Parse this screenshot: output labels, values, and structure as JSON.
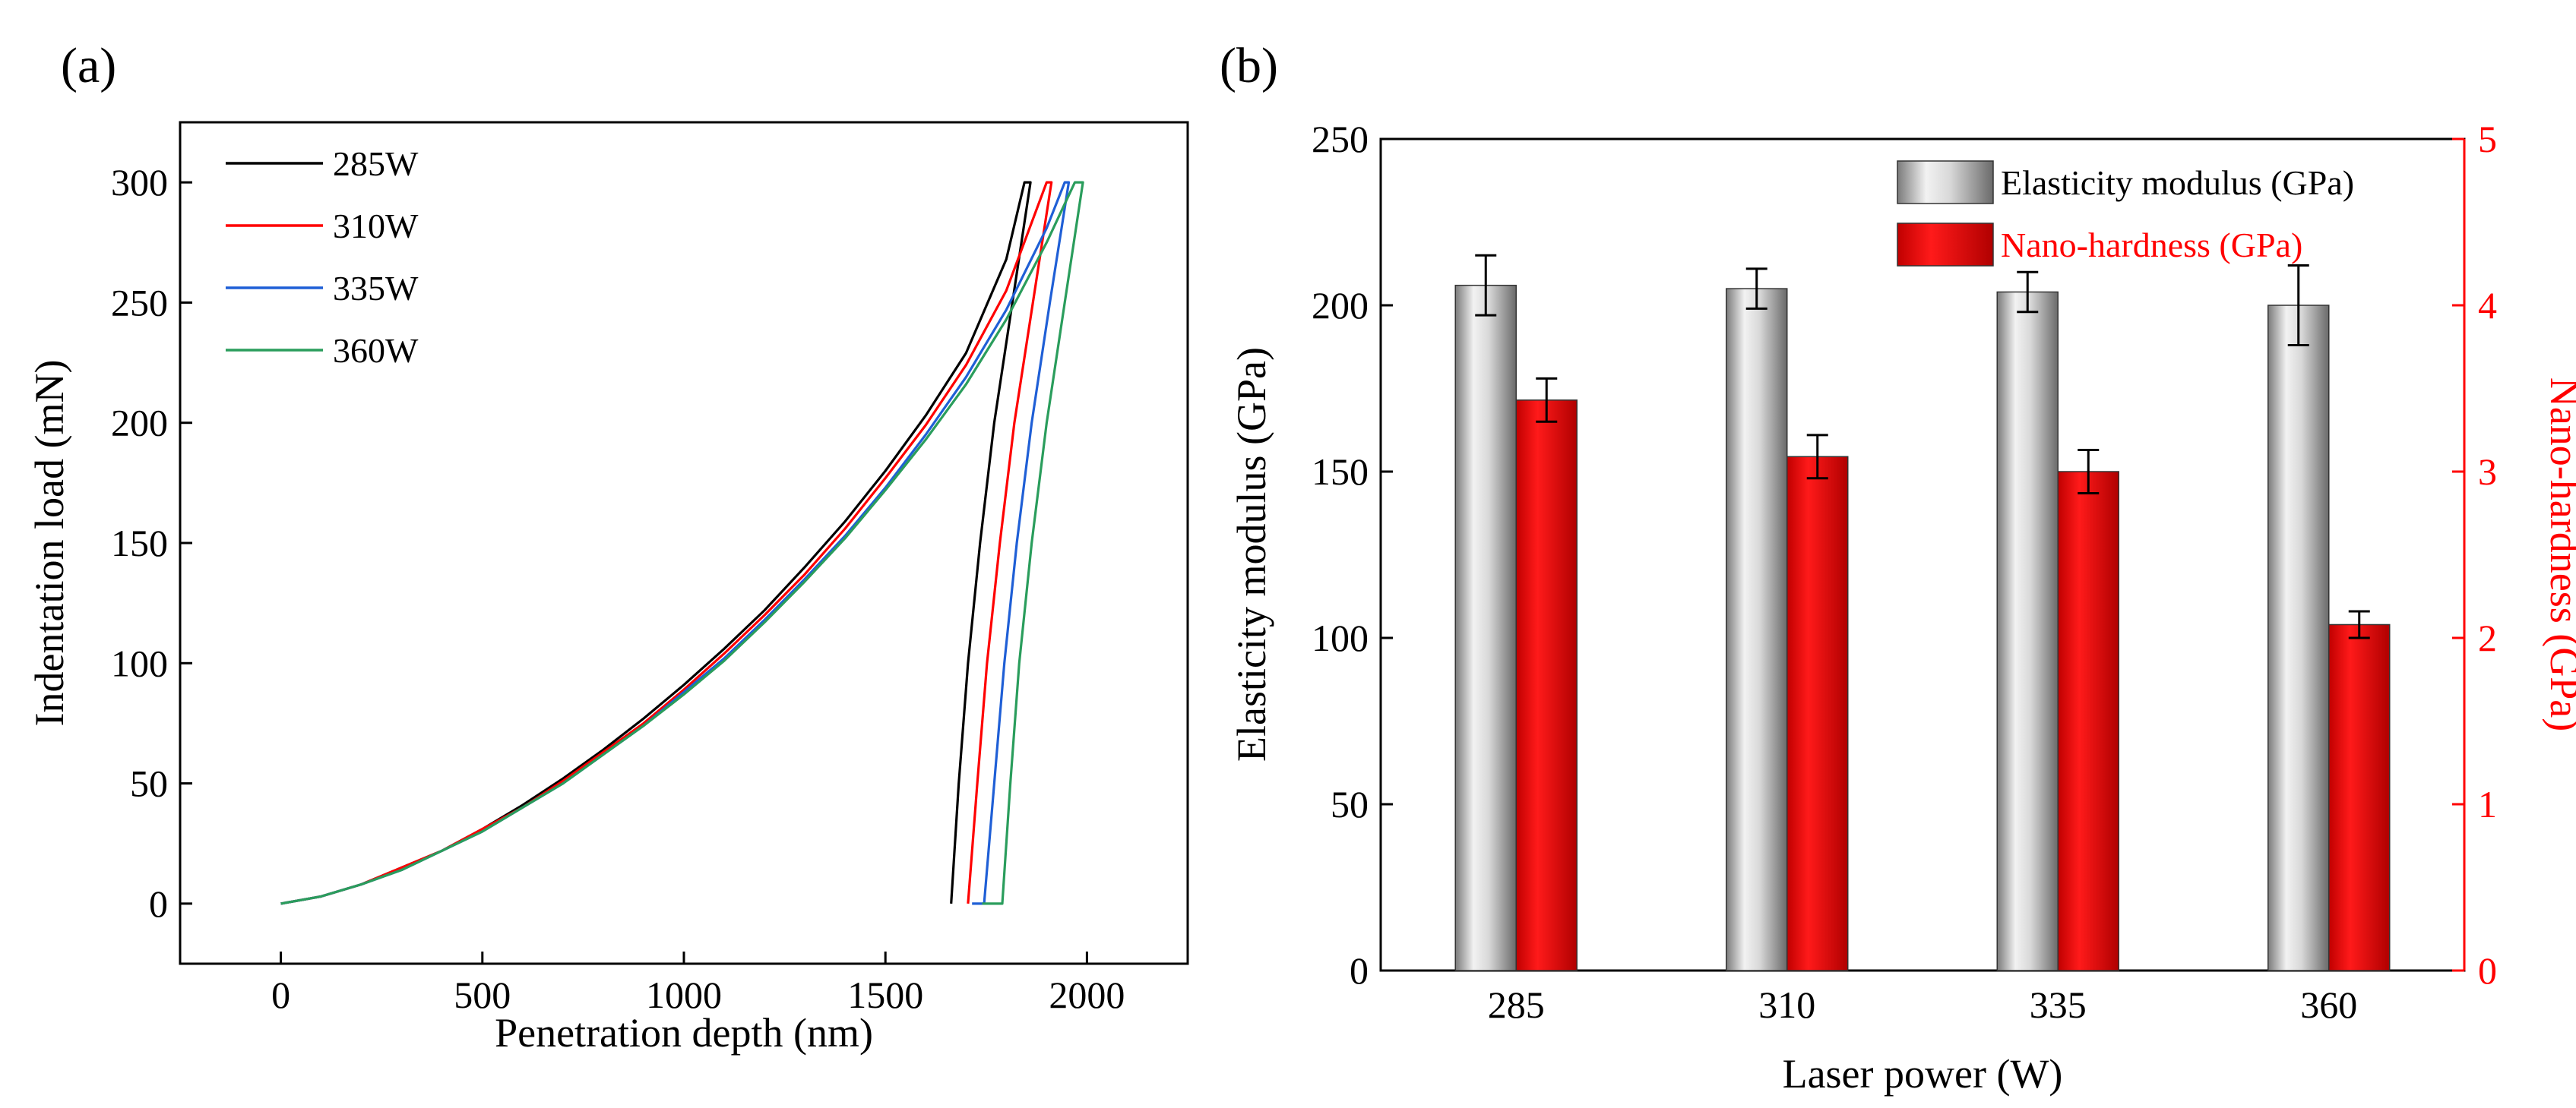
{
  "chart_data": [
    {
      "panel_label": "(a)",
      "type": "line",
      "xlabel": "Penetration depth (nm)",
      "ylabel": "Indentation load (mN)",
      "xlim": [
        -250,
        2250
      ],
      "ylim": [
        -25,
        325
      ],
      "xticks": [
        0,
        500,
        1000,
        1500,
        2000
      ],
      "yticks": [
        0,
        50,
        100,
        150,
        200,
        250,
        300
      ],
      "legend_position": "top-left",
      "series": [
        {
          "name": "285W",
          "color": "#000000",
          "loading": [
            [
              0,
              0
            ],
            [
              100,
              3
            ],
            [
              200,
              8
            ],
            [
              300,
              15
            ],
            [
              400,
              22
            ],
            [
              500,
              31
            ],
            [
              600,
              41
            ],
            [
              700,
              52
            ],
            [
              800,
              64
            ],
            [
              900,
              77
            ],
            [
              1000,
              91
            ],
            [
              1100,
              106
            ],
            [
              1200,
              122
            ],
            [
              1300,
              140
            ],
            [
              1400,
              159
            ],
            [
              1500,
              180
            ],
            [
              1600,
              203
            ],
            [
              1700,
              229
            ],
            [
              1800,
              268
            ],
            [
              1845,
              300
            ]
          ],
          "hold": [
            [
              1845,
              300
            ],
            [
              1860,
              300
            ]
          ],
          "unloading": [
            [
              1860,
              300
            ],
            [
              1815,
              250
            ],
            [
              1770,
              200
            ],
            [
              1735,
              150
            ],
            [
              1705,
              100
            ],
            [
              1682,
              50
            ],
            [
              1663,
              0
            ]
          ]
        },
        {
          "name": "310W",
          "color": "#ff0000",
          "loading": [
            [
              0,
              0
            ],
            [
              100,
              3
            ],
            [
              200,
              8
            ],
            [
              300,
              15
            ],
            [
              400,
              22
            ],
            [
              500,
              31
            ],
            [
              600,
              40
            ],
            [
              700,
              51
            ],
            [
              800,
              63
            ],
            [
              900,
              75
            ],
            [
              1000,
              89
            ],
            [
              1100,
              104
            ],
            [
              1200,
              120
            ],
            [
              1300,
              137
            ],
            [
              1400,
              156
            ],
            [
              1500,
              177
            ],
            [
              1600,
              199
            ],
            [
              1700,
              224
            ],
            [
              1800,
              255
            ],
            [
              1900,
              300
            ]
          ],
          "hold": [
            [
              1900,
              300
            ],
            [
              1912,
              300
            ]
          ],
          "unloading": [
            [
              1912,
              300
            ],
            [
              1866,
              250
            ],
            [
              1820,
              200
            ],
            [
              1784,
              150
            ],
            [
              1752,
              100
            ],
            [
              1728,
              50
            ],
            [
              1705,
              0
            ]
          ]
        },
        {
          "name": "335W",
          "color": "#1f5fd6",
          "loading": [
            [
              0,
              0
            ],
            [
              100,
              3
            ],
            [
              200,
              8
            ],
            [
              300,
              14
            ],
            [
              400,
              22
            ],
            [
              500,
              30
            ],
            [
              600,
              40
            ],
            [
              700,
              50
            ],
            [
              800,
              62
            ],
            [
              900,
              74
            ],
            [
              1000,
              88
            ],
            [
              1100,
              102
            ],
            [
              1200,
              118
            ],
            [
              1300,
              135
            ],
            [
              1400,
              153
            ],
            [
              1500,
              173
            ],
            [
              1600,
              195
            ],
            [
              1700,
              219
            ],
            [
              1800,
              247
            ],
            [
              1900,
              281
            ],
            [
              1945,
              300
            ]
          ],
          "hold": [
            [
              1945,
              300
            ],
            [
              1955,
              300
            ]
          ],
          "unloading": [
            [
              1955,
              300
            ],
            [
              1908,
              250
            ],
            [
              1863,
              200
            ],
            [
              1826,
              150
            ],
            [
              1795,
              100
            ],
            [
              1770,
              50
            ],
            [
              1745,
              0
            ],
            [
              1715,
              0
            ]
          ]
        },
        {
          "name": "360W",
          "color": "#2a9d5c",
          "loading": [
            [
              0,
              0
            ],
            [
              100,
              3
            ],
            [
              200,
              8
            ],
            [
              300,
              14
            ],
            [
              400,
              22
            ],
            [
              500,
              30
            ],
            [
              600,
              40
            ],
            [
              700,
              50
            ],
            [
              800,
              62
            ],
            [
              900,
              74
            ],
            [
              1000,
              87
            ],
            [
              1100,
              101
            ],
            [
              1200,
              117
            ],
            [
              1300,
              134
            ],
            [
              1400,
              152
            ],
            [
              1500,
              172
            ],
            [
              1600,
              193
            ],
            [
              1700,
              216
            ],
            [
              1800,
              243
            ],
            [
              1900,
              275
            ],
            [
              1970,
              300
            ]
          ],
          "hold": [
            [
              1970,
              300
            ],
            [
              1990,
              300
            ]
          ],
          "unloading": [
            [
              1990,
              300
            ],
            [
              1945,
              250
            ],
            [
              1900,
              200
            ],
            [
              1863,
              150
            ],
            [
              1832,
              100
            ],
            [
              1810,
              50
            ],
            [
              1790,
              0
            ],
            [
              1740,
              0
            ]
          ]
        }
      ]
    },
    {
      "panel_label": "(b)",
      "type": "bar",
      "xlabel": "Laser power (W)",
      "categories": [
        "285",
        "310",
        "335",
        "360"
      ],
      "y_left": {
        "label": "Elasticity modulus (GPa)",
        "lim": [
          0,
          250
        ],
        "ticks": [
          0,
          50,
          100,
          150,
          200,
          250
        ],
        "color": "#000000"
      },
      "y_right": {
        "label": "Nano-hardness (GPa)",
        "lim": [
          0,
          5
        ],
        "ticks": [
          0,
          1,
          2,
          3,
          4,
          5
        ],
        "color": "#ff0000"
      },
      "legend_position": "top-right",
      "series": [
        {
          "name": "Elasticity modulus (GPa)",
          "axis": "left",
          "color": "#aaaaaa",
          "values": [
            206,
            205,
            204,
            200
          ],
          "errors": [
            9,
            6,
            6,
            12
          ]
        },
        {
          "name": "Nano-hardness (GPa)",
          "axis": "right",
          "color": "#ff0000",
          "values": [
            3.43,
            3.09,
            3.0,
            2.08
          ],
          "errors": [
            0.13,
            0.13,
            0.13,
            0.08
          ]
        }
      ]
    }
  ]
}
